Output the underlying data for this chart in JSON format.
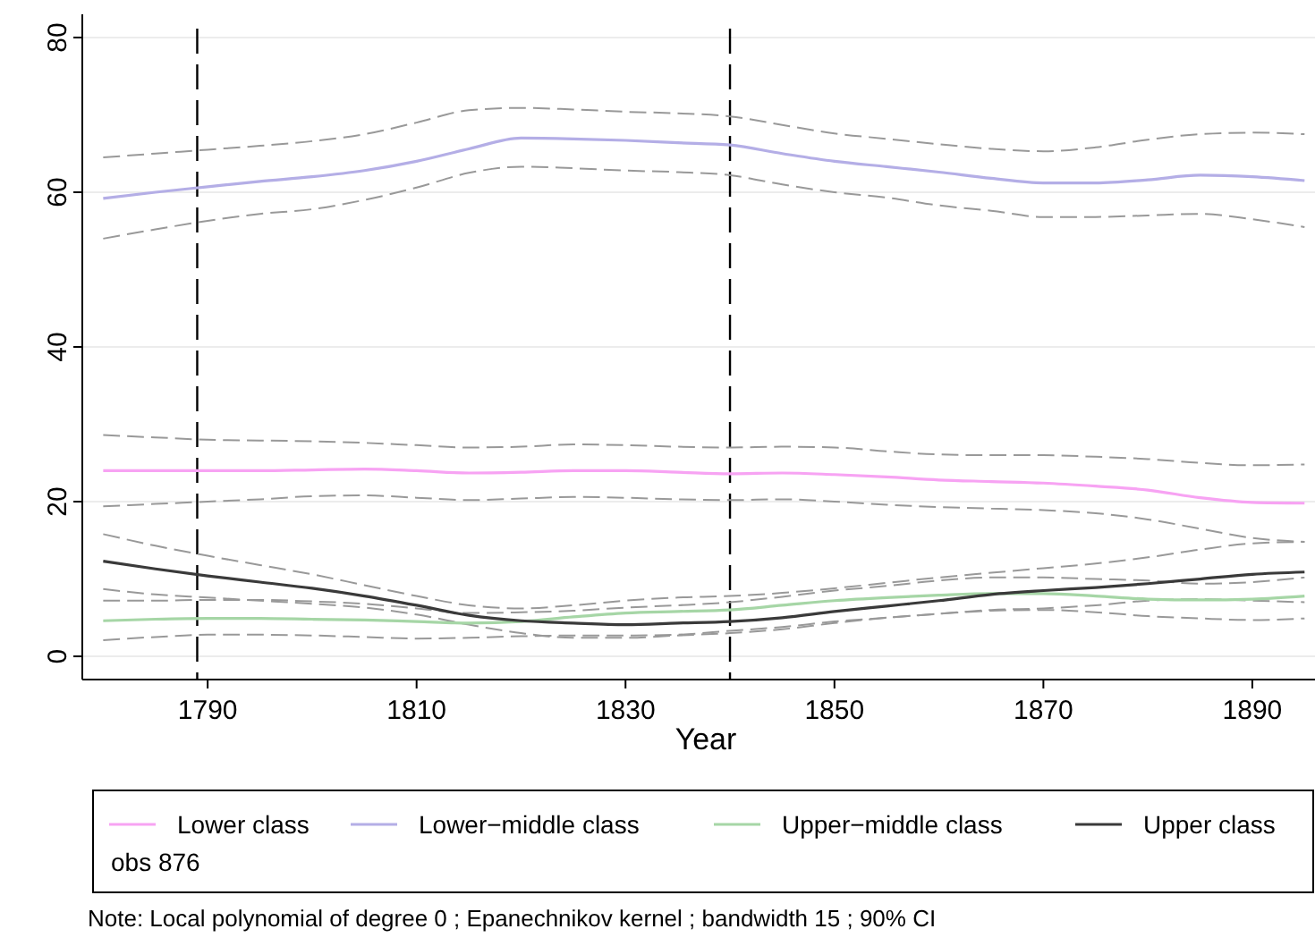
{
  "chart_data": {
    "type": "line",
    "xlabel": "Year",
    "x": [
      1780,
      1785,
      1790,
      1795,
      1800,
      1805,
      1810,
      1815,
      1820,
      1825,
      1830,
      1835,
      1840,
      1845,
      1850,
      1855,
      1860,
      1865,
      1870,
      1875,
      1880,
      1885,
      1890,
      1895
    ],
    "series": [
      {
        "name": "Lower class",
        "color": "#f7a3f3",
        "values": [
          24,
          24,
          24,
          24,
          24.1,
          24.2,
          24,
          23.7,
          23.8,
          24,
          24,
          23.8,
          23.6,
          23.7,
          23.5,
          23.2,
          22.8,
          22.6,
          22.4,
          22,
          21.5,
          20.5,
          19.9,
          19.8
        ]
      },
      {
        "name": "Lower−middle class",
        "color": "#b4aee6",
        "values": [
          59.2,
          60,
          60.7,
          61.4,
          62,
          62.8,
          64,
          65.6,
          67,
          66.9,
          66.7,
          66.4,
          66.1,
          65,
          64,
          63.3,
          62.6,
          61.8,
          61.2,
          61.2,
          61.6,
          62.2,
          62,
          61.5
        ]
      },
      {
        "name": "Upper−middle class",
        "color": "#a6d6a6",
        "values": [
          4.6,
          4.8,
          4.9,
          4.9,
          4.8,
          4.7,
          4.5,
          4.3,
          4.5,
          5.1,
          5.6,
          5.8,
          6,
          6.6,
          7.2,
          7.6,
          7.9,
          8.1,
          8.1,
          7.8,
          7.4,
          7.3,
          7.4,
          7.8
        ]
      },
      {
        "name": "Upper class",
        "color": "#3a3a3a",
        "values": [
          12.3,
          11.3,
          10.4,
          9.6,
          8.8,
          7.8,
          6.6,
          5.3,
          4.6,
          4.3,
          4.1,
          4.3,
          4.5,
          5,
          5.8,
          6.5,
          7.2,
          8,
          8.5,
          8.9,
          9.4,
          10,
          10.6,
          10.9
        ]
      },
      {
        "color": "#999999",
        "line_style": "dashed",
        "values": [
          19.4,
          19.7,
          20,
          20.3,
          20.7,
          20.8,
          20.5,
          20.2,
          20.4,
          20.6,
          20.5,
          20.3,
          20.2,
          20.3,
          20,
          19.6,
          19.3,
          19.1,
          18.9,
          18.5,
          17.7,
          16.5,
          15.3,
          14.8
        ]
      },
      {
        "color": "#999999",
        "line_style": "dashed",
        "values": [
          28.6,
          28.3,
          28,
          27.9,
          27.8,
          27.6,
          27.3,
          27,
          27.1,
          27.4,
          27.3,
          27.1,
          27,
          27.1,
          27,
          26.5,
          26.1,
          26,
          26,
          25.8,
          25.5,
          25,
          24.7,
          24.8
        ]
      },
      {
        "color": "#999999",
        "line_style": "dashed",
        "values": [
          54,
          55.2,
          56.3,
          57.2,
          57.8,
          59,
          60.6,
          62.5,
          63.3,
          63.1,
          62.8,
          62.6,
          62.2,
          61,
          60,
          59.3,
          58.3,
          57.6,
          56.8,
          56.8,
          57,
          57.2,
          56.5,
          55.5
        ]
      },
      {
        "color": "#999999",
        "line_style": "dashed",
        "values": [
          64.5,
          65,
          65.5,
          66,
          66.6,
          67.5,
          69,
          70.6,
          70.9,
          70.7,
          70.4,
          70.2,
          69.8,
          68.7,
          67.6,
          66.9,
          66.2,
          65.6,
          65.3,
          65.8,
          66.8,
          67.5,
          67.7,
          67.5
        ]
      },
      {
        "color": "#999999",
        "line_style": "dashed",
        "values": [
          2.1,
          2.5,
          2.8,
          2.8,
          2.7,
          2.5,
          2.3,
          2.4,
          2.6,
          2.7,
          2.7,
          2.8,
          3.3,
          3.8,
          4.5,
          5,
          5.5,
          5.9,
          6,
          5.7,
          5.2,
          4.9,
          4.7,
          4.9
        ]
      },
      {
        "color": "#999999",
        "line_style": "dashed",
        "values": [
          7.2,
          7.2,
          7.3,
          7.3,
          7.1,
          6.8,
          6.2,
          5.6,
          5.7,
          5.9,
          6.3,
          6.6,
          7,
          7.7,
          8.5,
          9.1,
          9.8,
          10.2,
          10.2,
          10,
          9.8,
          9.4,
          9.6,
          10.2
        ]
      },
      {
        "color": "#999999",
        "line_style": "dashed",
        "values": [
          8.7,
          8,
          7.6,
          7.2,
          6.8,
          6.3,
          5.4,
          4.1,
          3,
          2.4,
          2.4,
          2.7,
          3,
          3.5,
          4.3,
          5,
          5.5,
          6,
          6.2,
          6.6,
          7.2,
          7.4,
          7.2,
          7
        ]
      },
      {
        "color": "#999999",
        "line_style": "dashed",
        "values": [
          15.8,
          14.3,
          13,
          11.8,
          10.6,
          9.2,
          7.8,
          6.6,
          6.2,
          6.6,
          7.2,
          7.6,
          7.8,
          8.2,
          8.8,
          9.5,
          10.2,
          10.8,
          11.4,
          12,
          12.8,
          13.8,
          14.6,
          14.8
        ]
      }
    ],
    "xlim": [
      1778,
      1896
    ],
    "xticks": [
      1790,
      1810,
      1830,
      1850,
      1870,
      1890
    ],
    "ylim": [
      -3,
      83
    ],
    "yticks": [
      0,
      20,
      40,
      60,
      80
    ],
    "ref_lines": [
      {
        "axis": "x",
        "value": 1789,
        "line_style": "dashed",
        "color": "#000000"
      },
      {
        "axis": "x",
        "value": 1840,
        "line_style": "dashed",
        "color": "#000000"
      }
    ],
    "grid": "y",
    "legend": "bottom",
    "line_style": "solid",
    "marker": "none",
    "annotations": [
      "obs 876",
      "Note: Local polynomial of degree 0 ; Epanechnikov kernel ; bandwidth 15 ; 90% CI"
    ]
  }
}
